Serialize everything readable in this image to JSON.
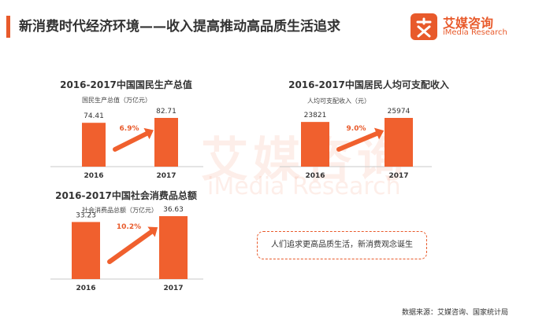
{
  "header": {
    "title": "新消费时代经济环境——收入提高推动高品质生活追求"
  },
  "brand": {
    "name_cn": "艾媒咨询",
    "name_en": "iMedia Research",
    "color": "#e85a2b"
  },
  "watermark": {
    "cn": "艾媒咨询",
    "en": "iMedia Research"
  },
  "chart_data": [
    {
      "type": "bar",
      "title": "2016-2017中国国民生产总值",
      "subtitle": "国民生产总值（万亿元）",
      "categories": [
        "2016",
        "2017"
      ],
      "values": [
        74.41,
        82.71
      ],
      "value_labels": [
        "74.41",
        "82.71"
      ],
      "growth_label": "6.9%",
      "color": "#f0602e"
    },
    {
      "type": "bar",
      "title": "2016-2017中国居民人均可支配收入",
      "subtitle": "人均可支配收入（元）",
      "categories": [
        "2016",
        "2017"
      ],
      "values": [
        23821,
        25974
      ],
      "value_labels": [
        "23821",
        "25974"
      ],
      "growth_label": "9.0%",
      "color": "#f0602e"
    },
    {
      "type": "bar",
      "title": "2016-2017中国社会消费品总额",
      "subtitle": "社会消费品总额（万亿元）",
      "categories": [
        "2016",
        "2017"
      ],
      "values": [
        33.23,
        36.63
      ],
      "value_labels": [
        "33.23",
        "36.63"
      ],
      "growth_label": "10.2%",
      "color": "#f0602e"
    }
  ],
  "callout": {
    "text": "人们追求更高品质生活，新消费观念诞生"
  },
  "source": {
    "text": "数据来源：艾媒咨询、国家统计局"
  }
}
